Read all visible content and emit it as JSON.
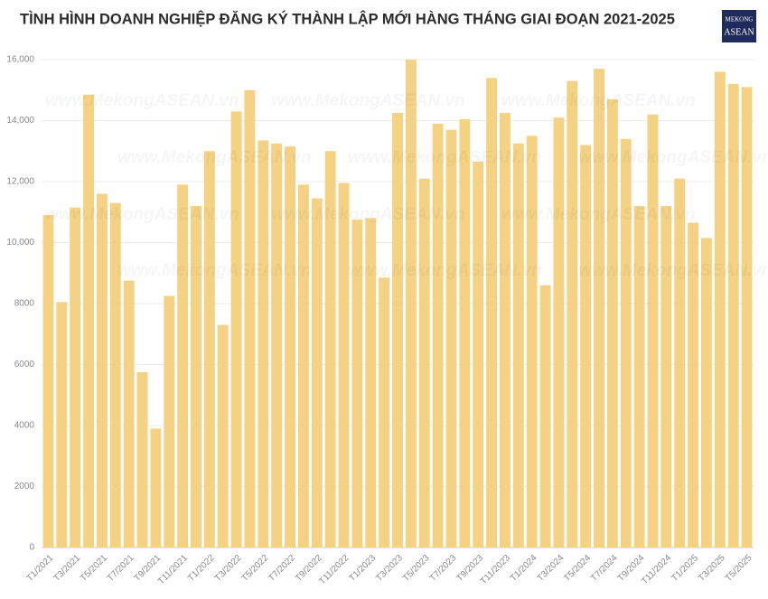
{
  "chart_data": {
    "type": "bar",
    "title": "TÌNH HÌNH DOANH NGHIỆP ĐĂNG KÝ THÀNH LẬP MỚI HÀNG THÁNG GIAI ĐOẠN 2021-2025",
    "logo": [
      "MEKONG",
      "ASEAN"
    ],
    "watermark": "www.MekongASEAN.vn",
    "color": "#f5d283",
    "grid": true,
    "categories": [
      "T1/2021",
      null,
      "T3/2021",
      null,
      "T5/2021",
      null,
      "T7/2021",
      null,
      "T9/2021",
      null,
      "T11/2021",
      null,
      "T1/2022",
      null,
      "T3/2022",
      null,
      "T5/2022",
      null,
      "T7/2022",
      null,
      "T9/2022",
      null,
      "T11/2022",
      null,
      "T1/2023",
      null,
      "T3/2023",
      null,
      "T5/2023",
      null,
      "T7/2023",
      null,
      "T9/2023",
      null,
      "T11/2023",
      null,
      "T1/2024",
      null,
      "T3/2024",
      null,
      "T5/2024",
      null,
      "T7/2024",
      null,
      "T9/2024",
      null,
      "T11/2024",
      null,
      "T1/2025",
      null,
      "T3/2025",
      null,
      "T5/2025"
    ],
    "values": [
      10900,
      8050,
      11150,
      14850,
      11600,
      11300,
      8750,
      5750,
      3900,
      8250,
      11900,
      11200,
      13000,
      7300,
      14300,
      15000,
      13350,
      13250,
      13150,
      11900,
      11450,
      13000,
      11950,
      10750,
      10800,
      8850,
      14250,
      16000,
      12100,
      13900,
      13700,
      14050,
      12650,
      15400,
      14250,
      13250,
      13500,
      8600,
      14100,
      15300,
      13200,
      15700,
      14700,
      13400,
      11200,
      14200,
      11200,
      12100,
      10650,
      10150,
      15600,
      15200,
      15100
    ],
    "ylim": [
      0,
      16000
    ],
    "yticks": [
      0,
      2000,
      4000,
      6000,
      8000,
      {
        "value": 10000,
        "label": "10,000"
      },
      {
        "value": 12000,
        "label": "12,000"
      },
      {
        "value": 14000,
        "label": "14,000"
      },
      {
        "value": 16000,
        "label": "16,000"
      }
    ]
  }
}
